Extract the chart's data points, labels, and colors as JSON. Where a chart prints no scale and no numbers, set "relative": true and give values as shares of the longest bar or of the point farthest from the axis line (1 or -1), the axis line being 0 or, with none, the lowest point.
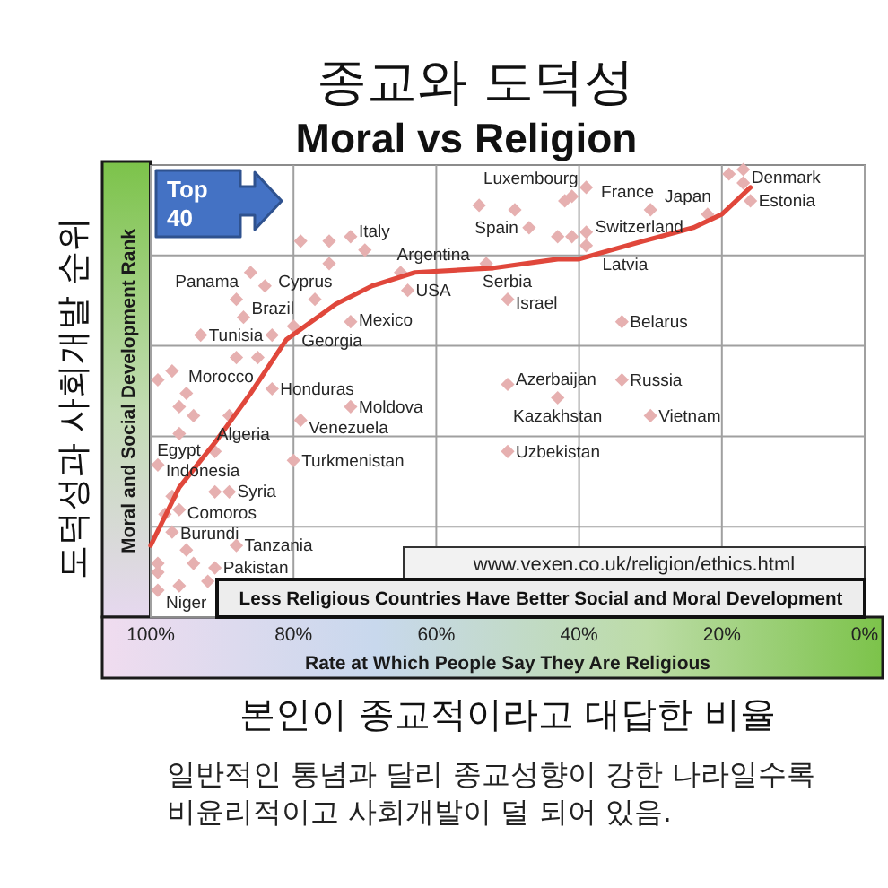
{
  "chart_data": {
    "type": "scatter",
    "title": "종교와 도덕성",
    "subtitle": "Moral vs Religion",
    "xlabel": "Rate at Which People Say They Are Religious",
    "ylabel": "Moral and Social Development Rank",
    "relative": true,
    "xlim": [
      100,
      0
    ],
    "xticks": [
      {
        "value": 100,
        "label": "100%"
      },
      {
        "value": 80,
        "label": "80%"
      },
      {
        "value": 60,
        "label": "60%"
      },
      {
        "value": 40,
        "label": "40%"
      },
      {
        "value": 20,
        "label": "20%"
      },
      {
        "value": 0,
        "label": "0%"
      }
    ],
    "tick_labels": "x",
    "grid": true,
    "marker": "diamond",
    "series": [
      {
        "type": "scatter",
        "color": "#e6b0b0",
        "x": [
          17,
          19,
          17,
          16,
          22,
          30,
          39,
          41,
          42,
          39,
          43,
          41,
          39,
          47,
          49,
          54,
          53,
          50,
          34,
          50,
          34,
          43,
          30,
          50,
          72,
          70,
          79,
          75,
          75,
          65,
          64,
          86,
          84,
          88,
          77,
          87,
          80,
          72,
          93,
          83,
          88,
          85,
          97,
          99,
          83,
          95,
          96,
          94,
          89,
          72,
          79,
          96,
          91,
          99,
          80,
          89,
          91,
          97,
          96,
          98,
          97,
          88,
          95,
          91,
          99,
          99,
          94,
          92,
          96,
          99
        ],
        "values": [
          1.0,
          0.99,
          0.97,
          0.93,
          0.9,
          0.91,
          0.96,
          0.94,
          0.93,
          0.86,
          0.85,
          0.85,
          0.83,
          0.87,
          0.91,
          0.92,
          0.79,
          0.71,
          0.66,
          0.52,
          0.53,
          0.49,
          0.45,
          0.37,
          0.85,
          0.82,
          0.84,
          0.84,
          0.79,
          0.77,
          0.73,
          0.77,
          0.74,
          0.71,
          0.71,
          0.67,
          0.65,
          0.66,
          0.63,
          0.63,
          0.58,
          0.58,
          0.55,
          0.53,
          0.51,
          0.5,
          0.47,
          0.45,
          0.45,
          0.47,
          0.44,
          0.41,
          0.37,
          0.34,
          0.35,
          0.28,
          0.28,
          0.27,
          0.24,
          0.23,
          0.19,
          0.16,
          0.15,
          0.11,
          0.1,
          0.12,
          0.12,
          0.08,
          0.07,
          0.06
        ]
      },
      {
        "type": "line",
        "color": "#e0473b",
        "marker": "none",
        "line_style": "solid",
        "x": [
          100,
          96,
          91,
          86,
          81,
          74,
          69,
          63,
          52,
          43,
          40,
          31,
          24,
          20,
          16
        ],
        "values": [
          0.16,
          0.29,
          0.39,
          0.5,
          0.62,
          0.7,
          0.74,
          0.77,
          0.78,
          0.8,
          0.8,
          0.84,
          0.87,
          0.9,
          0.96
        ]
      }
    ],
    "annotations": [
      "도덕성과 사회개발 순위",
      "본인이 종교적이라고 대답한 비율",
      "Top 40",
      "www.vexen.co.uk/religion/ethics.html",
      "Less Religious Countries Have Better Social and Moral Development",
      "일반적인 통념과 달리 종교성향이 강한 나라일수록 비윤리적이고 사회개발이 덜 되어 있음.",
      {
        "text": "Denmark",
        "x": 17,
        "y": 0.97
      },
      {
        "text": "Estonia",
        "x": 16,
        "y": 0.93
      },
      {
        "text": "Japan",
        "x": 22,
        "y": 0.9
      },
      {
        "text": "France",
        "x": 30,
        "y": 0.91
      },
      {
        "text": "Luxembourg",
        "x": 39,
        "y": 0.96
      },
      {
        "text": "Switzerland",
        "x": 41,
        "y": 0.94
      },
      {
        "text": "Latvia",
        "x": 39,
        "y": 0.86
      },
      {
        "text": "Spain",
        "x": 49,
        "y": 0.91
      },
      {
        "text": "Serbia",
        "x": 53,
        "y": 0.79
      },
      {
        "text": "Israel",
        "x": 50,
        "y": 0.71
      },
      {
        "text": "Belarus",
        "x": 34,
        "y": 0.66
      },
      {
        "text": "Azerbaijan",
        "x": 50,
        "y": 0.52
      },
      {
        "text": "Russia",
        "x": 34,
        "y": 0.53
      },
      {
        "text": "Kazakhstan",
        "x": 43,
        "y": 0.49
      },
      {
        "text": "Vietnam",
        "x": 30,
        "y": 0.45
      },
      {
        "text": "Uzbekistan",
        "x": 50,
        "y": 0.37
      },
      {
        "text": "Italy",
        "x": 72,
        "y": 0.85
      },
      {
        "text": "Cyprus",
        "x": 75,
        "y": 0.79
      },
      {
        "text": "Argentina",
        "x": 65,
        "y": 0.77
      },
      {
        "text": "USA",
        "x": 64,
        "y": 0.73
      },
      {
        "text": "Panama",
        "x": 88,
        "y": 0.71
      },
      {
        "text": "Brazil",
        "x": 87,
        "y": 0.67
      },
      {
        "text": "Georgia",
        "x": 80,
        "y": 0.65
      },
      {
        "text": "Mexico",
        "x": 72,
        "y": 0.66
      },
      {
        "text": "Tunisia",
        "x": 93,
        "y": 0.63
      },
      {
        "text": "Morocco",
        "x": 97,
        "y": 0.55
      },
      {
        "text": "Honduras",
        "x": 83,
        "y": 0.51
      },
      {
        "text": "Algeria",
        "x": 94,
        "y": 0.45
      },
      {
        "text": "Moldova",
        "x": 72,
        "y": 0.47
      },
      {
        "text": "Venezuela",
        "x": 79,
        "y": 0.44
      },
      {
        "text": "Egypt",
        "x": 96,
        "y": 0.41
      },
      {
        "text": "Indonesia",
        "x": 99,
        "y": 0.34
      },
      {
        "text": "Turkmenistan",
        "x": 80,
        "y": 0.35
      },
      {
        "text": "Syria",
        "x": 89,
        "y": 0.28
      },
      {
        "text": "Comoros",
        "x": 96,
        "y": 0.24
      },
      {
        "text": "Burundi",
        "x": 97,
        "y": 0.19
      },
      {
        "text": "Tanzania",
        "x": 88,
        "y": 0.16
      },
      {
        "text": "Pakistan",
        "x": 91,
        "y": 0.11
      },
      {
        "text": "Niger",
        "x": 99,
        "y": 0.1
      }
    ]
  }
}
